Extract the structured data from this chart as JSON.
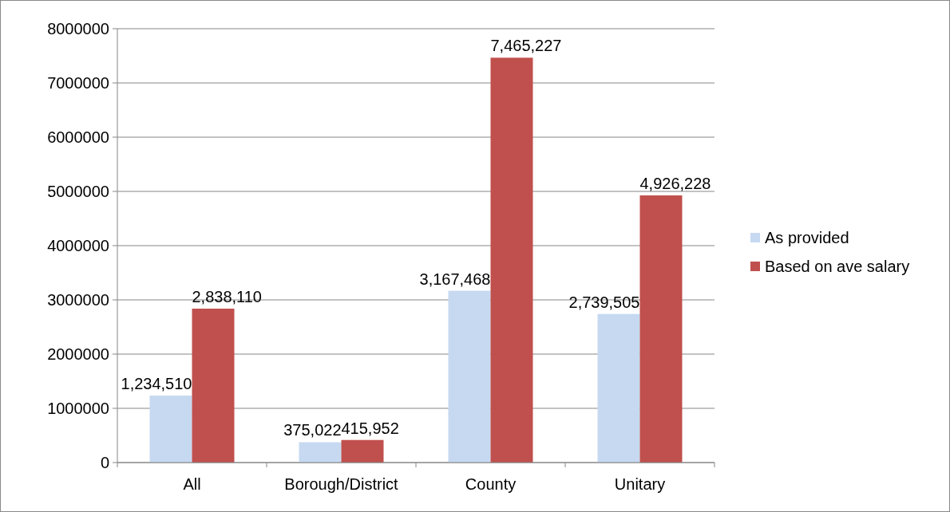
{
  "chart_data": {
    "type": "bar",
    "categories": [
      "All",
      "Borough/District",
      "County",
      "Unitary"
    ],
    "series": [
      {
        "name": "As provided",
        "color": "#c6d9f1",
        "values": [
          1234510,
          375022,
          3167468,
          2739505
        ],
        "value_labels": [
          "1,234,510",
          "375,022",
          "3,167,468",
          "2,739,505"
        ]
      },
      {
        "name": "Based on ave salary",
        "color": "#c0504d",
        "values": [
          2838110,
          415952,
          7465227,
          4926228
        ],
        "value_labels": [
          "2,838,110",
          "415,952",
          "7,465,227",
          "4,926,228"
        ]
      }
    ],
    "ylim": [
      0,
      8000000
    ],
    "yticks": [
      0,
      1000000,
      2000000,
      3000000,
      4000000,
      5000000,
      6000000,
      7000000,
      8000000
    ],
    "grid": "y",
    "legend": "right"
  }
}
